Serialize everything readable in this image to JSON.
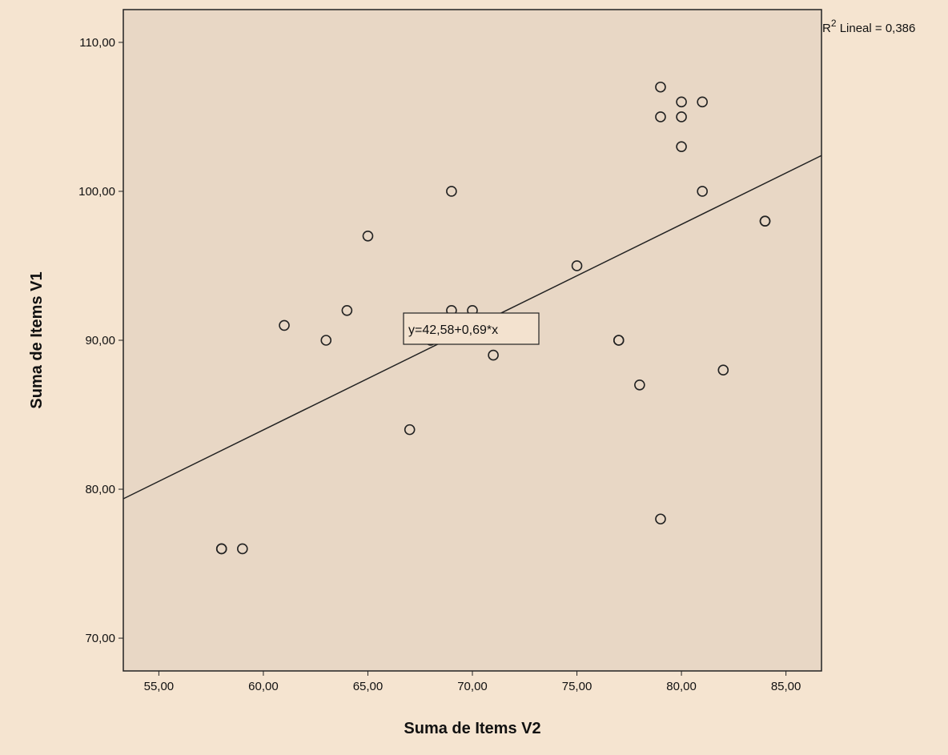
{
  "chart_data": {
    "type": "scatter",
    "xlabel": "Suma de Items V2",
    "ylabel": "Suma de Items V1",
    "xlim": [
      53.3,
      86.7
    ],
    "ylim": [
      67.8,
      112.2
    ],
    "x_ticks": [
      55,
      60,
      65,
      70,
      75,
      80,
      85
    ],
    "x_tick_labels": [
      "55,00",
      "60,00",
      "65,00",
      "70,00",
      "75,00",
      "80,00",
      "85,00"
    ],
    "y_ticks": [
      70,
      80,
      90,
      100,
      110
    ],
    "y_tick_labels": [
      "70,00",
      "80,00",
      "90,00",
      "100,00",
      "110,00"
    ],
    "grid": false,
    "points": [
      {
        "x": 58,
        "y": 76
      },
      {
        "x": 58,
        "y": 76
      },
      {
        "x": 59,
        "y": 76
      },
      {
        "x": 61,
        "y": 91
      },
      {
        "x": 63,
        "y": 90
      },
      {
        "x": 64,
        "y": 92
      },
      {
        "x": 65,
        "y": 97
      },
      {
        "x": 67,
        "y": 84
      },
      {
        "x": 68,
        "y": 90
      },
      {
        "x": 69,
        "y": 92
      },
      {
        "x": 69,
        "y": 100
      },
      {
        "x": 70,
        "y": 92
      },
      {
        "x": 71,
        "y": 89
      },
      {
        "x": 75,
        "y": 95
      },
      {
        "x": 77,
        "y": 90
      },
      {
        "x": 77,
        "y": 90
      },
      {
        "x": 78,
        "y": 87
      },
      {
        "x": 79,
        "y": 78
      },
      {
        "x": 79,
        "y": 105
      },
      {
        "x": 79,
        "y": 107
      },
      {
        "x": 80,
        "y": 103
      },
      {
        "x": 80,
        "y": 105
      },
      {
        "x": 80,
        "y": 106
      },
      {
        "x": 81,
        "y": 100
      },
      {
        "x": 81,
        "y": 106
      },
      {
        "x": 82,
        "y": 88
      },
      {
        "x": 84,
        "y": 98
      },
      {
        "x": 84,
        "y": 98
      }
    ],
    "fit_line": {
      "intercept": 42.58,
      "slope": 0.69
    },
    "annotations": {
      "equation": "y=42,58+0,69*x",
      "r2_prefix": "R",
      "r2_sup": "2",
      "r2_suffix": " Lineal = 0,386"
    },
    "colors": {
      "background": "#f5e4d0",
      "plot_area": "#e8d7c5",
      "marker_edge": "#222222",
      "line": "#222222"
    }
  }
}
